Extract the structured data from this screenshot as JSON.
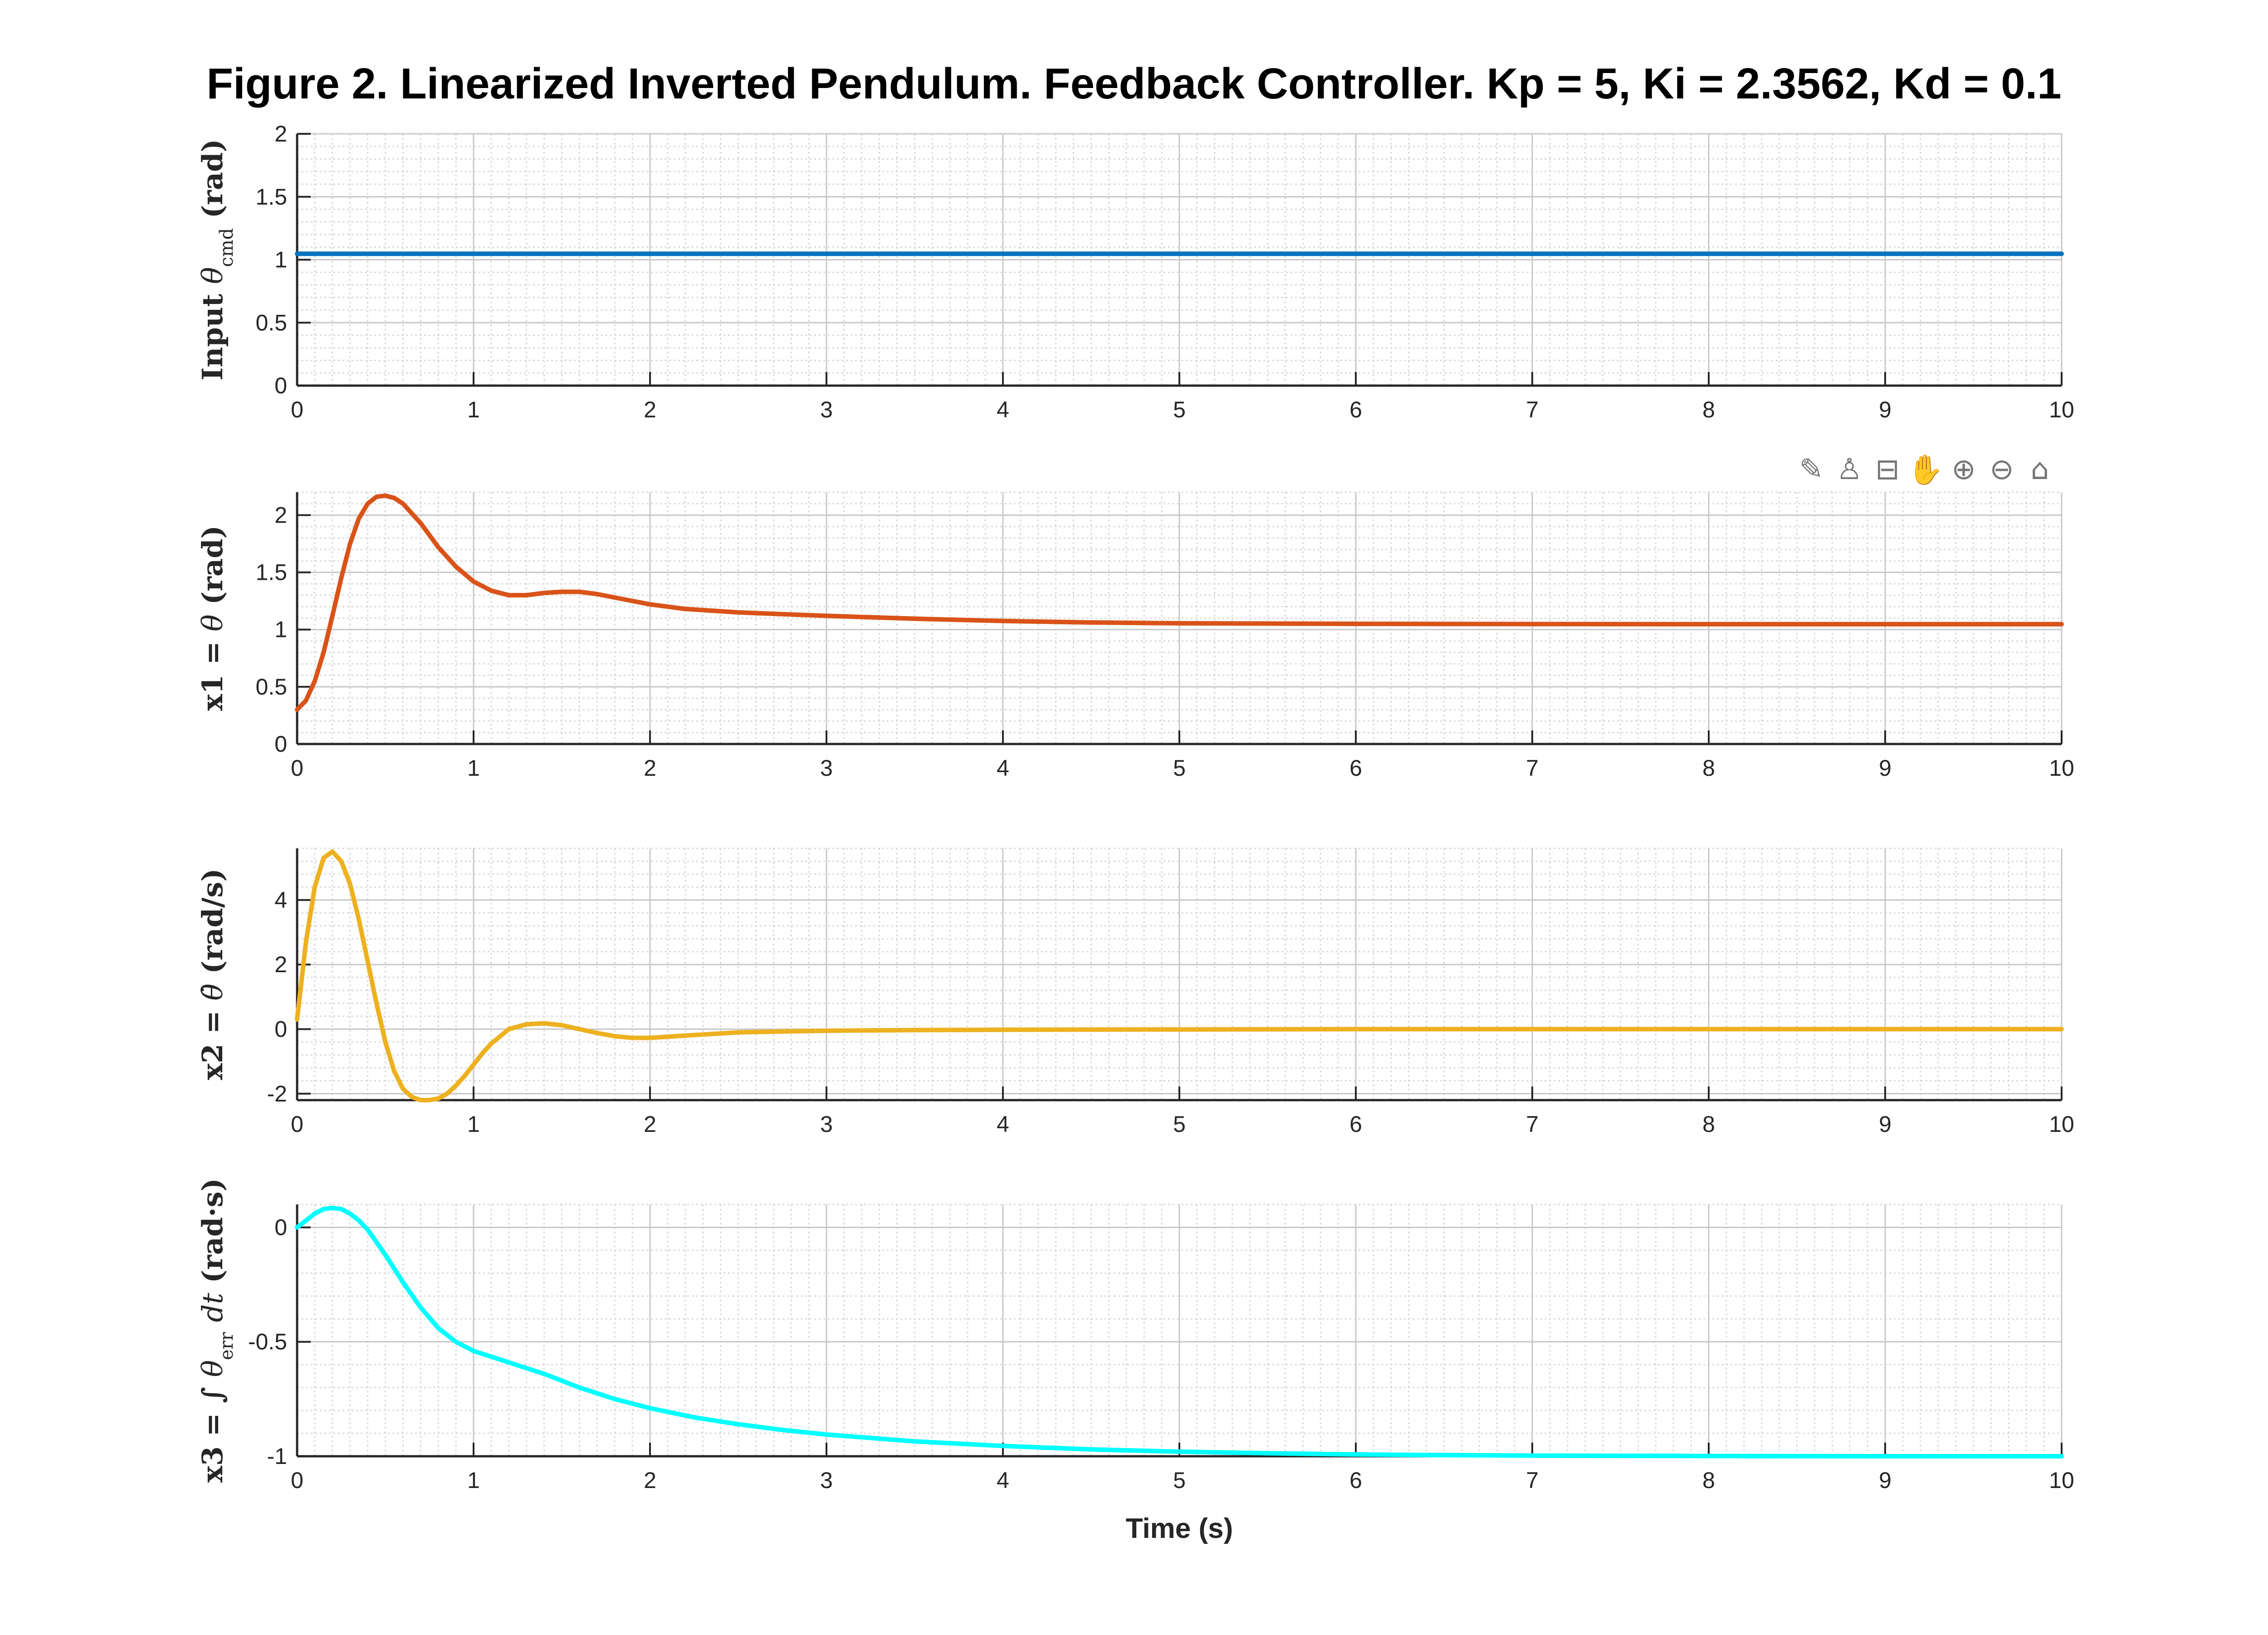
{
  "figure_title": "Figure 2. Linearized Inverted Pendulum. Feedback Controller. Kp = 5, Ki = 2.3562, Kd = 0.1",
  "toolbar": {
    "icons": [
      "brush-icon",
      "data-tip-icon",
      "legend-icon",
      "pan-icon",
      "zoom-in-icon",
      "zoom-out-icon",
      "home-icon"
    ],
    "glyphs": [
      "✎",
      "♙",
      "⊟",
      "✋",
      "⊕",
      "⊖",
      "⌂"
    ]
  },
  "chart_data": [
    {
      "type": "line",
      "ylabel": "Input θcmd (rad)",
      "xlabel": "",
      "xlim": [
        0,
        10
      ],
      "ylim": [
        0,
        2
      ],
      "xticks": [
        0,
        1,
        2,
        3,
        4,
        5,
        6,
        7,
        8,
        9,
        10
      ],
      "yticks": [
        0,
        0.5,
        1,
        1.5,
        2
      ],
      "grid": true,
      "minor_grid": true,
      "series": [
        {
          "color": "#0072BD",
          "x": [
            0,
            10
          ],
          "y": [
            1.0472,
            1.0472
          ]
        }
      ]
    },
    {
      "type": "line",
      "ylabel": "x1 = θ (rad)",
      "xlabel": "",
      "xlim": [
        0,
        10
      ],
      "ylim": [
        0,
        2.2
      ],
      "xticks": [
        0,
        1,
        2,
        3,
        4,
        5,
        6,
        7,
        8,
        9,
        10
      ],
      "yticks": [
        0,
        0.5,
        1,
        1.5,
        2
      ],
      "grid": true,
      "minor_grid": true,
      "series": [
        {
          "color": "#D95319",
          "x": [
            0,
            0.05,
            0.1,
            0.15,
            0.2,
            0.25,
            0.3,
            0.35,
            0.4,
            0.45,
            0.5,
            0.55,
            0.6,
            0.7,
            0.8,
            0.9,
            1.0,
            1.1,
            1.2,
            1.3,
            1.4,
            1.5,
            1.6,
            1.7,
            1.8,
            2.0,
            2.2,
            2.5,
            3.0,
            3.5,
            4.0,
            4.5,
            5.0,
            6.0,
            7.0,
            8.0,
            9.0,
            10.0
          ],
          "y": [
            0.3,
            0.38,
            0.55,
            0.8,
            1.12,
            1.45,
            1.75,
            1.97,
            2.1,
            2.16,
            2.17,
            2.15,
            2.1,
            1.93,
            1.72,
            1.55,
            1.42,
            1.34,
            1.3,
            1.3,
            1.32,
            1.33,
            1.33,
            1.31,
            1.28,
            1.22,
            1.18,
            1.15,
            1.12,
            1.095,
            1.075,
            1.062,
            1.055,
            1.05,
            1.048,
            1.047,
            1.047,
            1.047
          ]
        }
      ]
    },
    {
      "type": "line",
      "ylabel": "x2 = θ̇ (rad/s)",
      "xlabel": "",
      "xlim": [
        0,
        10
      ],
      "ylim": [
        -2.2,
        5.6
      ],
      "xticks": [
        0,
        1,
        2,
        3,
        4,
        5,
        6,
        7,
        8,
        9,
        10
      ],
      "yticks": [
        -2,
        0,
        2,
        4
      ],
      "grid": true,
      "minor_grid": true,
      "series": [
        {
          "color": "#EDB120",
          "x": [
            0,
            0.05,
            0.1,
            0.15,
            0.2,
            0.25,
            0.3,
            0.35,
            0.4,
            0.45,
            0.5,
            0.55,
            0.6,
            0.65,
            0.7,
            0.75,
            0.8,
            0.85,
            0.9,
            0.95,
            1.0,
            1.05,
            1.1,
            1.2,
            1.3,
            1.4,
            1.5,
            1.6,
            1.7,
            1.8,
            1.9,
            2.0,
            2.2,
            2.5,
            3.0,
            3.5,
            4.0,
            5.0,
            6.0,
            7.0,
            8.0,
            9.0,
            10.0
          ],
          "y": [
            0.3,
            2.7,
            4.4,
            5.3,
            5.5,
            5.2,
            4.5,
            3.4,
            2.1,
            0.8,
            -0.4,
            -1.3,
            -1.85,
            -2.1,
            -2.2,
            -2.2,
            -2.15,
            -2.0,
            -1.75,
            -1.45,
            -1.1,
            -0.75,
            -0.45,
            0.0,
            0.15,
            0.18,
            0.12,
            0.0,
            -0.12,
            -0.22,
            -0.27,
            -0.27,
            -0.2,
            -0.1,
            -0.05,
            -0.03,
            -0.02,
            -0.01,
            0.0,
            0.0,
            0.0,
            0.0,
            0.0
          ]
        }
      ]
    },
    {
      "type": "line",
      "ylabel": "x3 = ∫ θerr dt (rad·s)",
      "xlabel": "Time (s)",
      "xlim": [
        0,
        10
      ],
      "ylim": [
        -1,
        0.1
      ],
      "xticks": [
        0,
        1,
        2,
        3,
        4,
        5,
        6,
        7,
        8,
        9,
        10
      ],
      "yticks": [
        -1,
        -0.5,
        0
      ],
      "grid": true,
      "minor_grid": true,
      "series": [
        {
          "color": "#00FFFF",
          "x": [
            0,
            0.05,
            0.1,
            0.15,
            0.2,
            0.25,
            0.3,
            0.35,
            0.4,
            0.5,
            0.6,
            0.7,
            0.8,
            0.9,
            1.0,
            1.2,
            1.4,
            1.6,
            1.8,
            2.0,
            2.25,
            2.5,
            2.75,
            3.0,
            3.5,
            4.0,
            4.5,
            5.0,
            5.5,
            6.0,
            6.5,
            7.0,
            8.0,
            9.0,
            10.0
          ],
          "y": [
            0,
            0.03,
            0.06,
            0.08,
            0.085,
            0.08,
            0.06,
            0.03,
            -0.01,
            -0.12,
            -0.24,
            -0.35,
            -0.44,
            -0.5,
            -0.54,
            -0.59,
            -0.64,
            -0.7,
            -0.75,
            -0.79,
            -0.83,
            -0.86,
            -0.885,
            -0.905,
            -0.935,
            -0.955,
            -0.97,
            -0.98,
            -0.987,
            -0.992,
            -0.995,
            -0.997,
            -0.999,
            -1.0,
            -1.0
          ]
        }
      ]
    }
  ]
}
